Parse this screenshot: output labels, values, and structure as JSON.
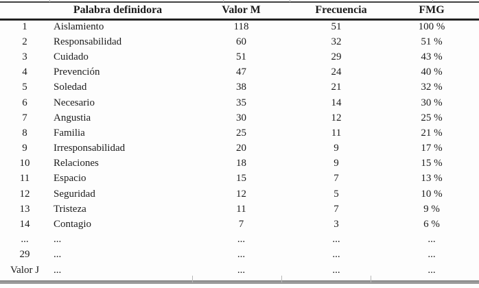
{
  "table": {
    "columns": [
      {
        "key": "rank",
        "label": ""
      },
      {
        "key": "palabra",
        "label": "Palabra definidora"
      },
      {
        "key": "valor_m",
        "label": "Valor M"
      },
      {
        "key": "frecuencia",
        "label": "Frecuencia"
      },
      {
        "key": "fmg",
        "label": "FMG"
      }
    ],
    "rows": [
      [
        "1",
        "Aislamiento",
        "118",
        "51",
        "100 %"
      ],
      [
        "2",
        "Responsabilidad",
        "60",
        "32",
        "51 %"
      ],
      [
        "3",
        "Cuidado",
        "51",
        "29",
        "43 %"
      ],
      [
        "4",
        "Prevención",
        "47",
        "24",
        "40 %"
      ],
      [
        "5",
        "Soledad",
        "38",
        "21",
        "32 %"
      ],
      [
        "6",
        "Necesario",
        "35",
        "14",
        "30 %"
      ],
      [
        "7",
        "Angustia",
        "30",
        "12",
        "25 %"
      ],
      [
        "8",
        "Familia",
        "25",
        "11",
        "21 %"
      ],
      [
        "9",
        "Irresponsabilidad",
        "20",
        "9",
        "17 %"
      ],
      [
        "10",
        "Relaciones",
        "18",
        "9",
        "15 %"
      ],
      [
        "11",
        "Espacio",
        "15",
        "7",
        "13 %"
      ],
      [
        "12",
        "Seguridad",
        "12",
        "5",
        "10 %"
      ],
      [
        "13",
        "Tristeza",
        "11",
        "7",
        "9 %"
      ],
      [
        "14",
        "Contagio",
        "7",
        "3",
        "6 %"
      ],
      [
        "...",
        "...",
        "...",
        "...",
        "..."
      ],
      [
        "29",
        "...",
        "...",
        "...",
        "..."
      ],
      [
        "Valor J",
        "...",
        "...",
        "...",
        "..."
      ]
    ]
  }
}
